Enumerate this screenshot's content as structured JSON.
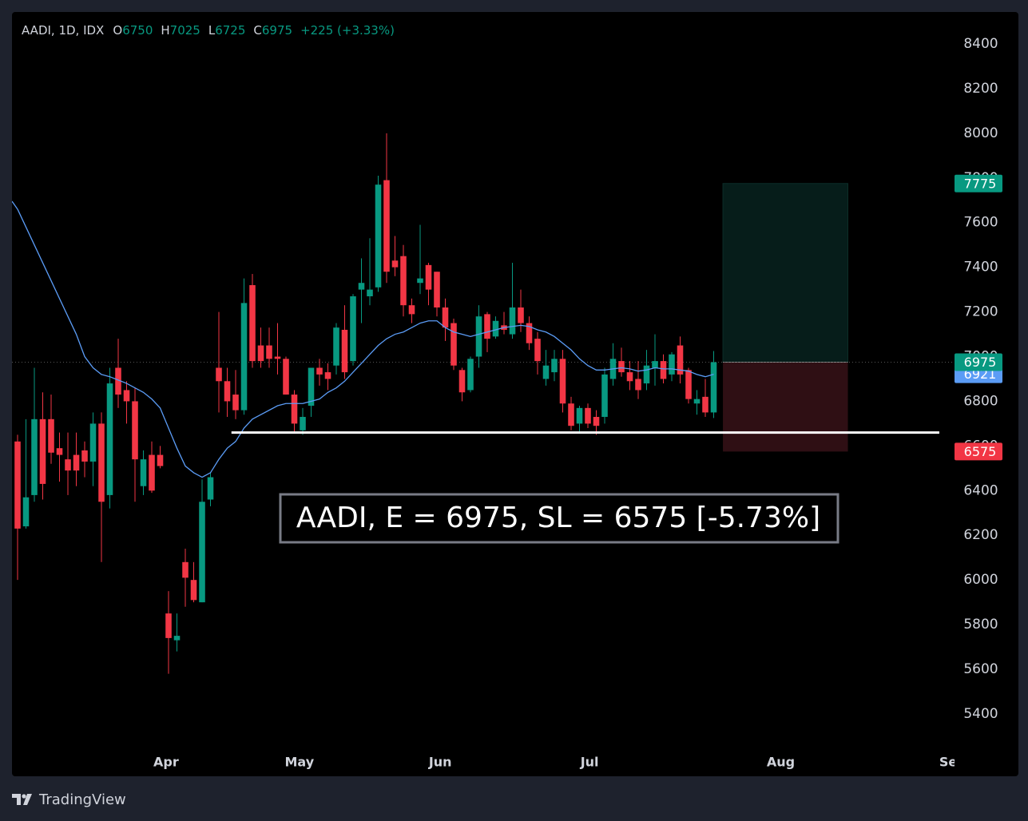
{
  "chart_data": {
    "type": "candlestick",
    "symbol": "AADI, 1D, IDX",
    "legend": [
      {
        "label": "O",
        "value": 6750
      },
      {
        "label": "H",
        "value": 7025
      },
      {
        "label": "L",
        "value": 6725
      },
      {
        "label": "C",
        "value": 6975
      }
    ],
    "change": "+225 (+3.33%)",
    "open": [
      6620,
      6240,
      6380,
      6720,
      6720,
      6590,
      6540,
      6560,
      6580,
      6530,
      6700,
      6380,
      6950,
      6850,
      6800,
      6420,
      6560,
      6560,
      5850,
      5730,
      6080,
      6000,
      5900,
      6360,
      6950,
      6890,
      6830,
      6760,
      7320,
      7050,
      7050,
      7000,
      6990,
      6830,
      6670,
      6780,
      6950,
      6930,
      6960,
      7120,
      6980,
      7300,
      7270,
      7310,
      7790,
      7430,
      7450,
      7230,
      7330,
      7410,
      7380,
      7220,
      7150,
      6940,
      6850,
      7000,
      7190,
      7090,
      7140,
      7100,
      7220,
      7150,
      7080,
      6900,
      6930,
      6990,
      6790,
      6700,
      6770,
      6730,
      6730,
      6900,
      6980,
      6930,
      6900,
      6880,
      6950,
      6980,
      6920,
      7050,
      6940,
      6790,
      6820,
      6750
    ],
    "high": [
      6650,
      6720,
      6950,
      6840,
      6830,
      6660,
      6660,
      6660,
      6620,
      6750,
      6750,
      6950,
      7080,
      6890,
      6860,
      6580,
      6620,
      6600,
      5950,
      5850,
      6140,
      6080,
      6450,
      6480,
      7200,
      6950,
      6940,
      7350,
      7370,
      7130,
      7130,
      7150,
      7000,
      6850,
      6770,
      6950,
      6990,
      6970,
      7150,
      7230,
      7280,
      7440,
      7530,
      7810,
      8000,
      7540,
      7500,
      7260,
      7590,
      7420,
      7380,
      7260,
      7170,
      6950,
      7000,
      7230,
      7200,
      7180,
      7200,
      7420,
      7300,
      7180,
      7110,
      7030,
      7030,
      7030,
      6820,
      6780,
      6790,
      6760,
      6950,
      7060,
      7040,
      6980,
      6980,
      7030,
      7100,
      7010,
      7020,
      7090,
      6950,
      6850,
      6900,
      7025
    ],
    "low": [
      6000,
      6230,
      6350,
      6360,
      6520,
      6440,
      6380,
      6420,
      6460,
      6420,
      6080,
      6320,
      6770,
      6700,
      6350,
      6380,
      6390,
      6500,
      5580,
      5680,
      5880,
      5900,
      5900,
      6330,
      6750,
      6730,
      6720,
      6740,
      6950,
      6950,
      6950,
      6920,
      6830,
      6660,
      6650,
      6730,
      6870,
      6850,
      6920,
      6900,
      6960,
      7150,
      7230,
      7290,
      7330,
      7360,
      7180,
      7150,
      7280,
      7230,
      7180,
      7070,
      6940,
      6800,
      6840,
      6950,
      7020,
      7080,
      7100,
      7080,
      7110,
      7030,
      6920,
      6870,
      6890,
      6750,
      6670,
      6660,
      6680,
      6650,
      6700,
      6870,
      6910,
      6850,
      6810,
      6850,
      6870,
      6880,
      6890,
      6880,
      6790,
      6740,
      6730,
      6725
    ],
    "close": [
      6230,
      6370,
      6720,
      6430,
      6570,
      6560,
      6490,
      6490,
      6530,
      6700,
      6350,
      6880,
      6830,
      6800,
      6540,
      6540,
      6400,
      6510,
      5740,
      5750,
      6010,
      5910,
      6350,
      6460,
      6890,
      6800,
      6760,
      7240,
      6980,
      6980,
      6990,
      6990,
      6830,
      6700,
      6730,
      6950,
      6920,
      6900,
      7130,
      6930,
      7270,
      7330,
      7300,
      7770,
      7380,
      7400,
      7230,
      7190,
      7350,
      7300,
      7220,
      7130,
      6960,
      6840,
      6990,
      7180,
      7080,
      7160,
      7120,
      7220,
      7150,
      7060,
      6980,
      6960,
      6990,
      6790,
      6690,
      6770,
      6700,
      6690,
      6920,
      6990,
      6930,
      6890,
      6850,
      6960,
      6980,
      6900,
      7010,
      6920,
      6810,
      6810,
      6750,
      6975
    ],
    "up_color": "#089981",
    "down_color": "#f23645",
    "ma": {
      "color": "#5b9cf6",
      "values": [
        7660,
        7580,
        7500,
        7420,
        7340,
        7260,
        7180,
        7100,
        7000,
        6950,
        6920,
        6910,
        6895,
        6880,
        6860,
        6840,
        6810,
        6770,
        6680,
        6590,
        6510,
        6480,
        6460,
        6480,
        6540,
        6590,
        6620,
        6680,
        6720,
        6740,
        6760,
        6780,
        6790,
        6790,
        6790,
        6800,
        6810,
        6840,
        6860,
        6890,
        6930,
        6970,
        7010,
        7050,
        7080,
        7100,
        7110,
        7130,
        7150,
        7160,
        7160,
        7130,
        7110,
        7100,
        7090,
        7100,
        7110,
        7120,
        7130,
        7135,
        7140,
        7135,
        7120,
        7110,
        7090,
        7060,
        7030,
        6990,
        6960,
        6940,
        6940,
        6945,
        6950,
        6945,
        6935,
        6940,
        6950,
        6945,
        6945,
        6940,
        6935,
        6920,
        6910,
        6921
      ]
    },
    "xlim": [
      -0.667,
      111.714
    ],
    "xticks": [
      {
        "value": 17.7,
        "label": "Apr"
      },
      {
        "value": 33.6,
        "label": "May"
      },
      {
        "value": 50.4,
        "label": "Jun"
      },
      {
        "value": 68.2,
        "label": "Jul"
      },
      {
        "value": 91,
        "label": "Aug"
      },
      {
        "value": 111.5,
        "label": "Sep"
      }
    ],
    "ylim": [
      5121,
      8543
    ],
    "yticks": [
      5400,
      5600,
      5800,
      6000,
      6200,
      6400,
      6600,
      6800,
      7000,
      7200,
      7400,
      7600,
      7800,
      8000,
      8200,
      8400
    ],
    "grid": false,
    "last_price": 6975,
    "support_line": {
      "value": 6660,
      "x": [
        25.5,
        109.9
      ]
    },
    "position": {
      "x": [
        84.1,
        99
      ],
      "entry": 6975,
      "target": 7775,
      "stop": 6575
    },
    "annotation": "AADI, E = 6975, SL = 6575 [-5.73%]"
  },
  "footer": {
    "brand": "TradingView"
  }
}
